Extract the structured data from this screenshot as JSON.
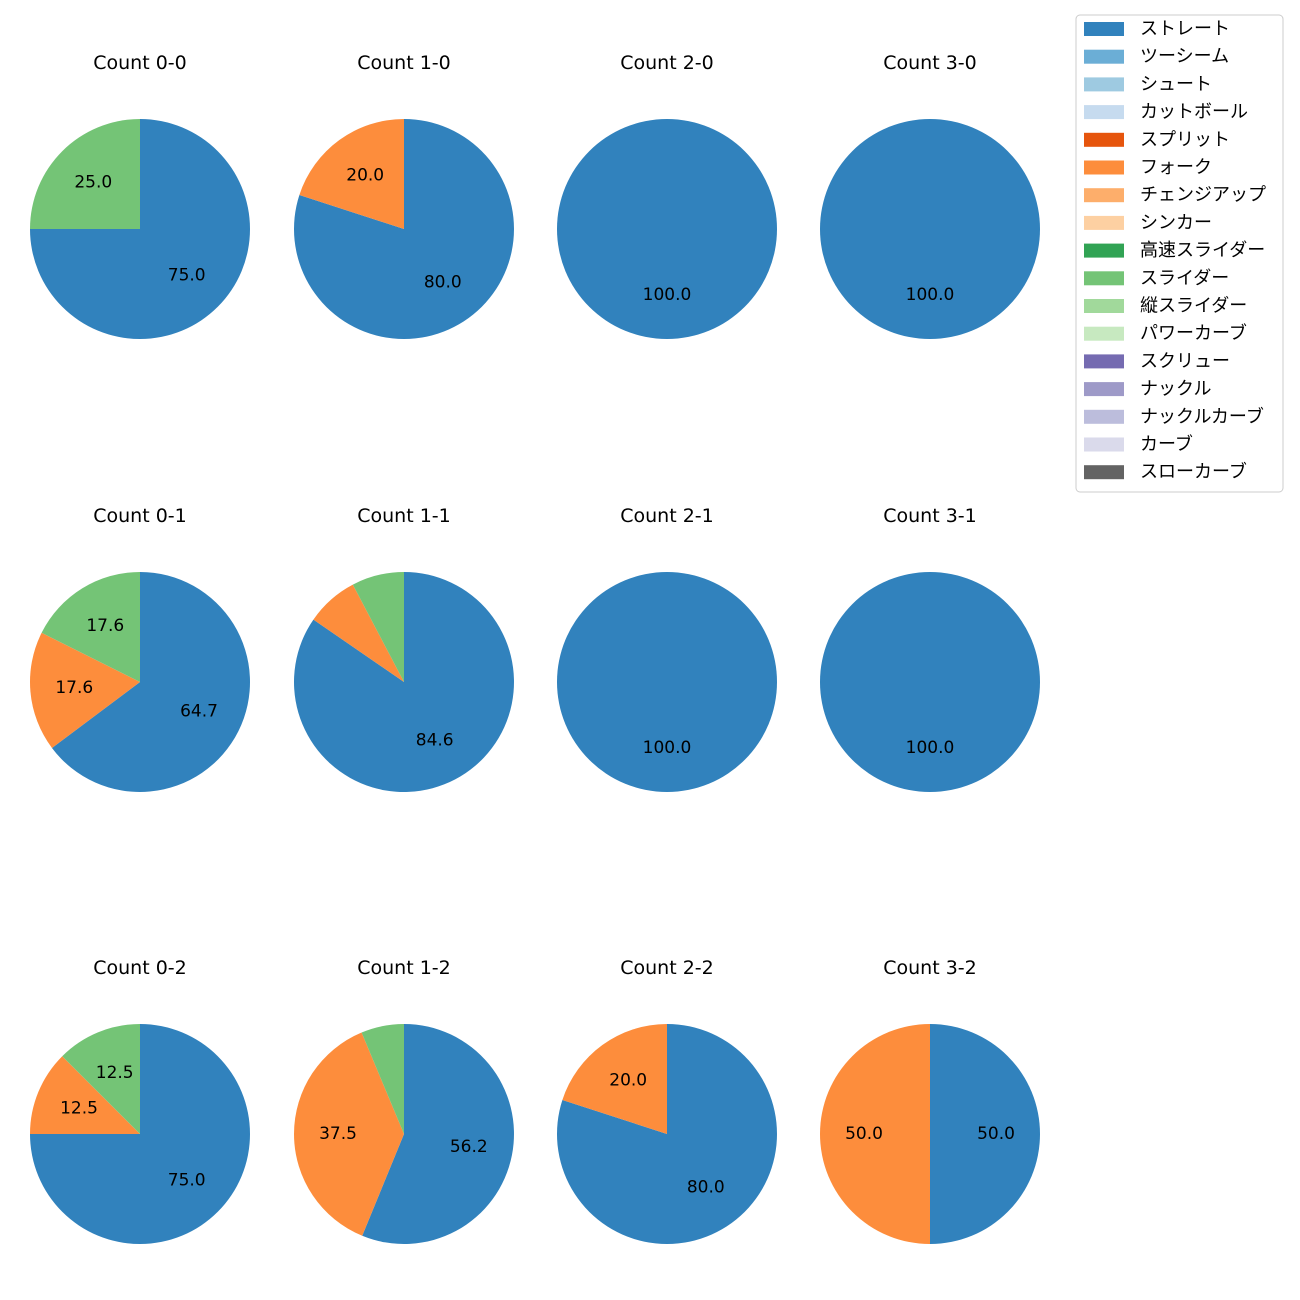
{
  "chart_data": {
    "type": "pie",
    "legend_position": "top-right",
    "legend": [
      {
        "label": "ストレート",
        "color": "#3182bd"
      },
      {
        "label": "ツーシーム",
        "color": "#6baed6"
      },
      {
        "label": "シュート",
        "color": "#9ecae1"
      },
      {
        "label": "カットボール",
        "color": "#c6dbef"
      },
      {
        "label": "スプリット",
        "color": "#e6550d"
      },
      {
        "label": "フォーク",
        "color": "#fd8d3c"
      },
      {
        "label": "チェンジアップ",
        "color": "#fdae6b"
      },
      {
        "label": "シンカー",
        "color": "#fdd0a2"
      },
      {
        "label": "高速スライダー",
        "color": "#31a354"
      },
      {
        "label": "スライダー",
        "color": "#74c476"
      },
      {
        "label": "縦スライダー",
        "color": "#a1d99b"
      },
      {
        "label": "パワーカーブ",
        "color": "#c7e9c0"
      },
      {
        "label": "スクリュー",
        "color": "#756bb1"
      },
      {
        "label": "ナックル",
        "color": "#9e9ac8"
      },
      {
        "label": "ナックルカーブ",
        "color": "#bcbddc"
      },
      {
        "label": "カーブ",
        "color": "#dadaeb"
      },
      {
        "label": "スローカーブ",
        "color": "#636363"
      }
    ],
    "pies": [
      {
        "title": "Count 0-0",
        "slices": [
          {
            "pitch": "ストレート",
            "value": 75.0,
            "label": "75.0"
          },
          {
            "pitch": "スライダー",
            "value": 25.0,
            "label": "25.0"
          }
        ]
      },
      {
        "title": "Count 1-0",
        "slices": [
          {
            "pitch": "ストレート",
            "value": 80.0,
            "label": "80.0"
          },
          {
            "pitch": "フォーク",
            "value": 20.0,
            "label": "20.0"
          }
        ]
      },
      {
        "title": "Count 2-0",
        "slices": [
          {
            "pitch": "ストレート",
            "value": 100.0,
            "label": "100.0"
          }
        ]
      },
      {
        "title": "Count 3-0",
        "slices": [
          {
            "pitch": "ストレート",
            "value": 100.0,
            "label": "100.0"
          }
        ]
      },
      {
        "title": "Count 0-1",
        "slices": [
          {
            "pitch": "ストレート",
            "value": 64.7,
            "label": "64.7"
          },
          {
            "pitch": "フォーク",
            "value": 17.6,
            "label": "17.6"
          },
          {
            "pitch": "スライダー",
            "value": 17.6,
            "label": "17.6"
          }
        ]
      },
      {
        "title": "Count 1-1",
        "slices": [
          {
            "pitch": "ストレート",
            "value": 84.6,
            "label": "84.6"
          },
          {
            "pitch": "フォーク",
            "value": 7.7,
            "label": ""
          },
          {
            "pitch": "スライダー",
            "value": 7.7,
            "label": ""
          }
        ]
      },
      {
        "title": "Count 2-1",
        "slices": [
          {
            "pitch": "ストレート",
            "value": 100.0,
            "label": "100.0"
          }
        ]
      },
      {
        "title": "Count 3-1",
        "slices": [
          {
            "pitch": "ストレート",
            "value": 100.0,
            "label": "100.0"
          }
        ]
      },
      {
        "title": "Count 0-2",
        "slices": [
          {
            "pitch": "ストレート",
            "value": 75.0,
            "label": "75.0"
          },
          {
            "pitch": "フォーク",
            "value": 12.5,
            "label": "12.5"
          },
          {
            "pitch": "スライダー",
            "value": 12.5,
            "label": "12.5"
          }
        ]
      },
      {
        "title": "Count 1-2",
        "slices": [
          {
            "pitch": "ストレート",
            "value": 56.2,
            "label": "56.2"
          },
          {
            "pitch": "フォーク",
            "value": 37.5,
            "label": "37.5"
          },
          {
            "pitch": "スライダー",
            "value": 6.3,
            "label": ""
          }
        ]
      },
      {
        "title": "Count 2-2",
        "slices": [
          {
            "pitch": "ストレート",
            "value": 80.0,
            "label": "80.0"
          },
          {
            "pitch": "フォーク",
            "value": 20.0,
            "label": "20.0"
          }
        ]
      },
      {
        "title": "Count 3-2",
        "slices": [
          {
            "pitch": "ストレート",
            "value": 50.0,
            "label": "50.0"
          },
          {
            "pitch": "フォーク",
            "value": 50.0,
            "label": "50.0"
          }
        ]
      }
    ]
  }
}
